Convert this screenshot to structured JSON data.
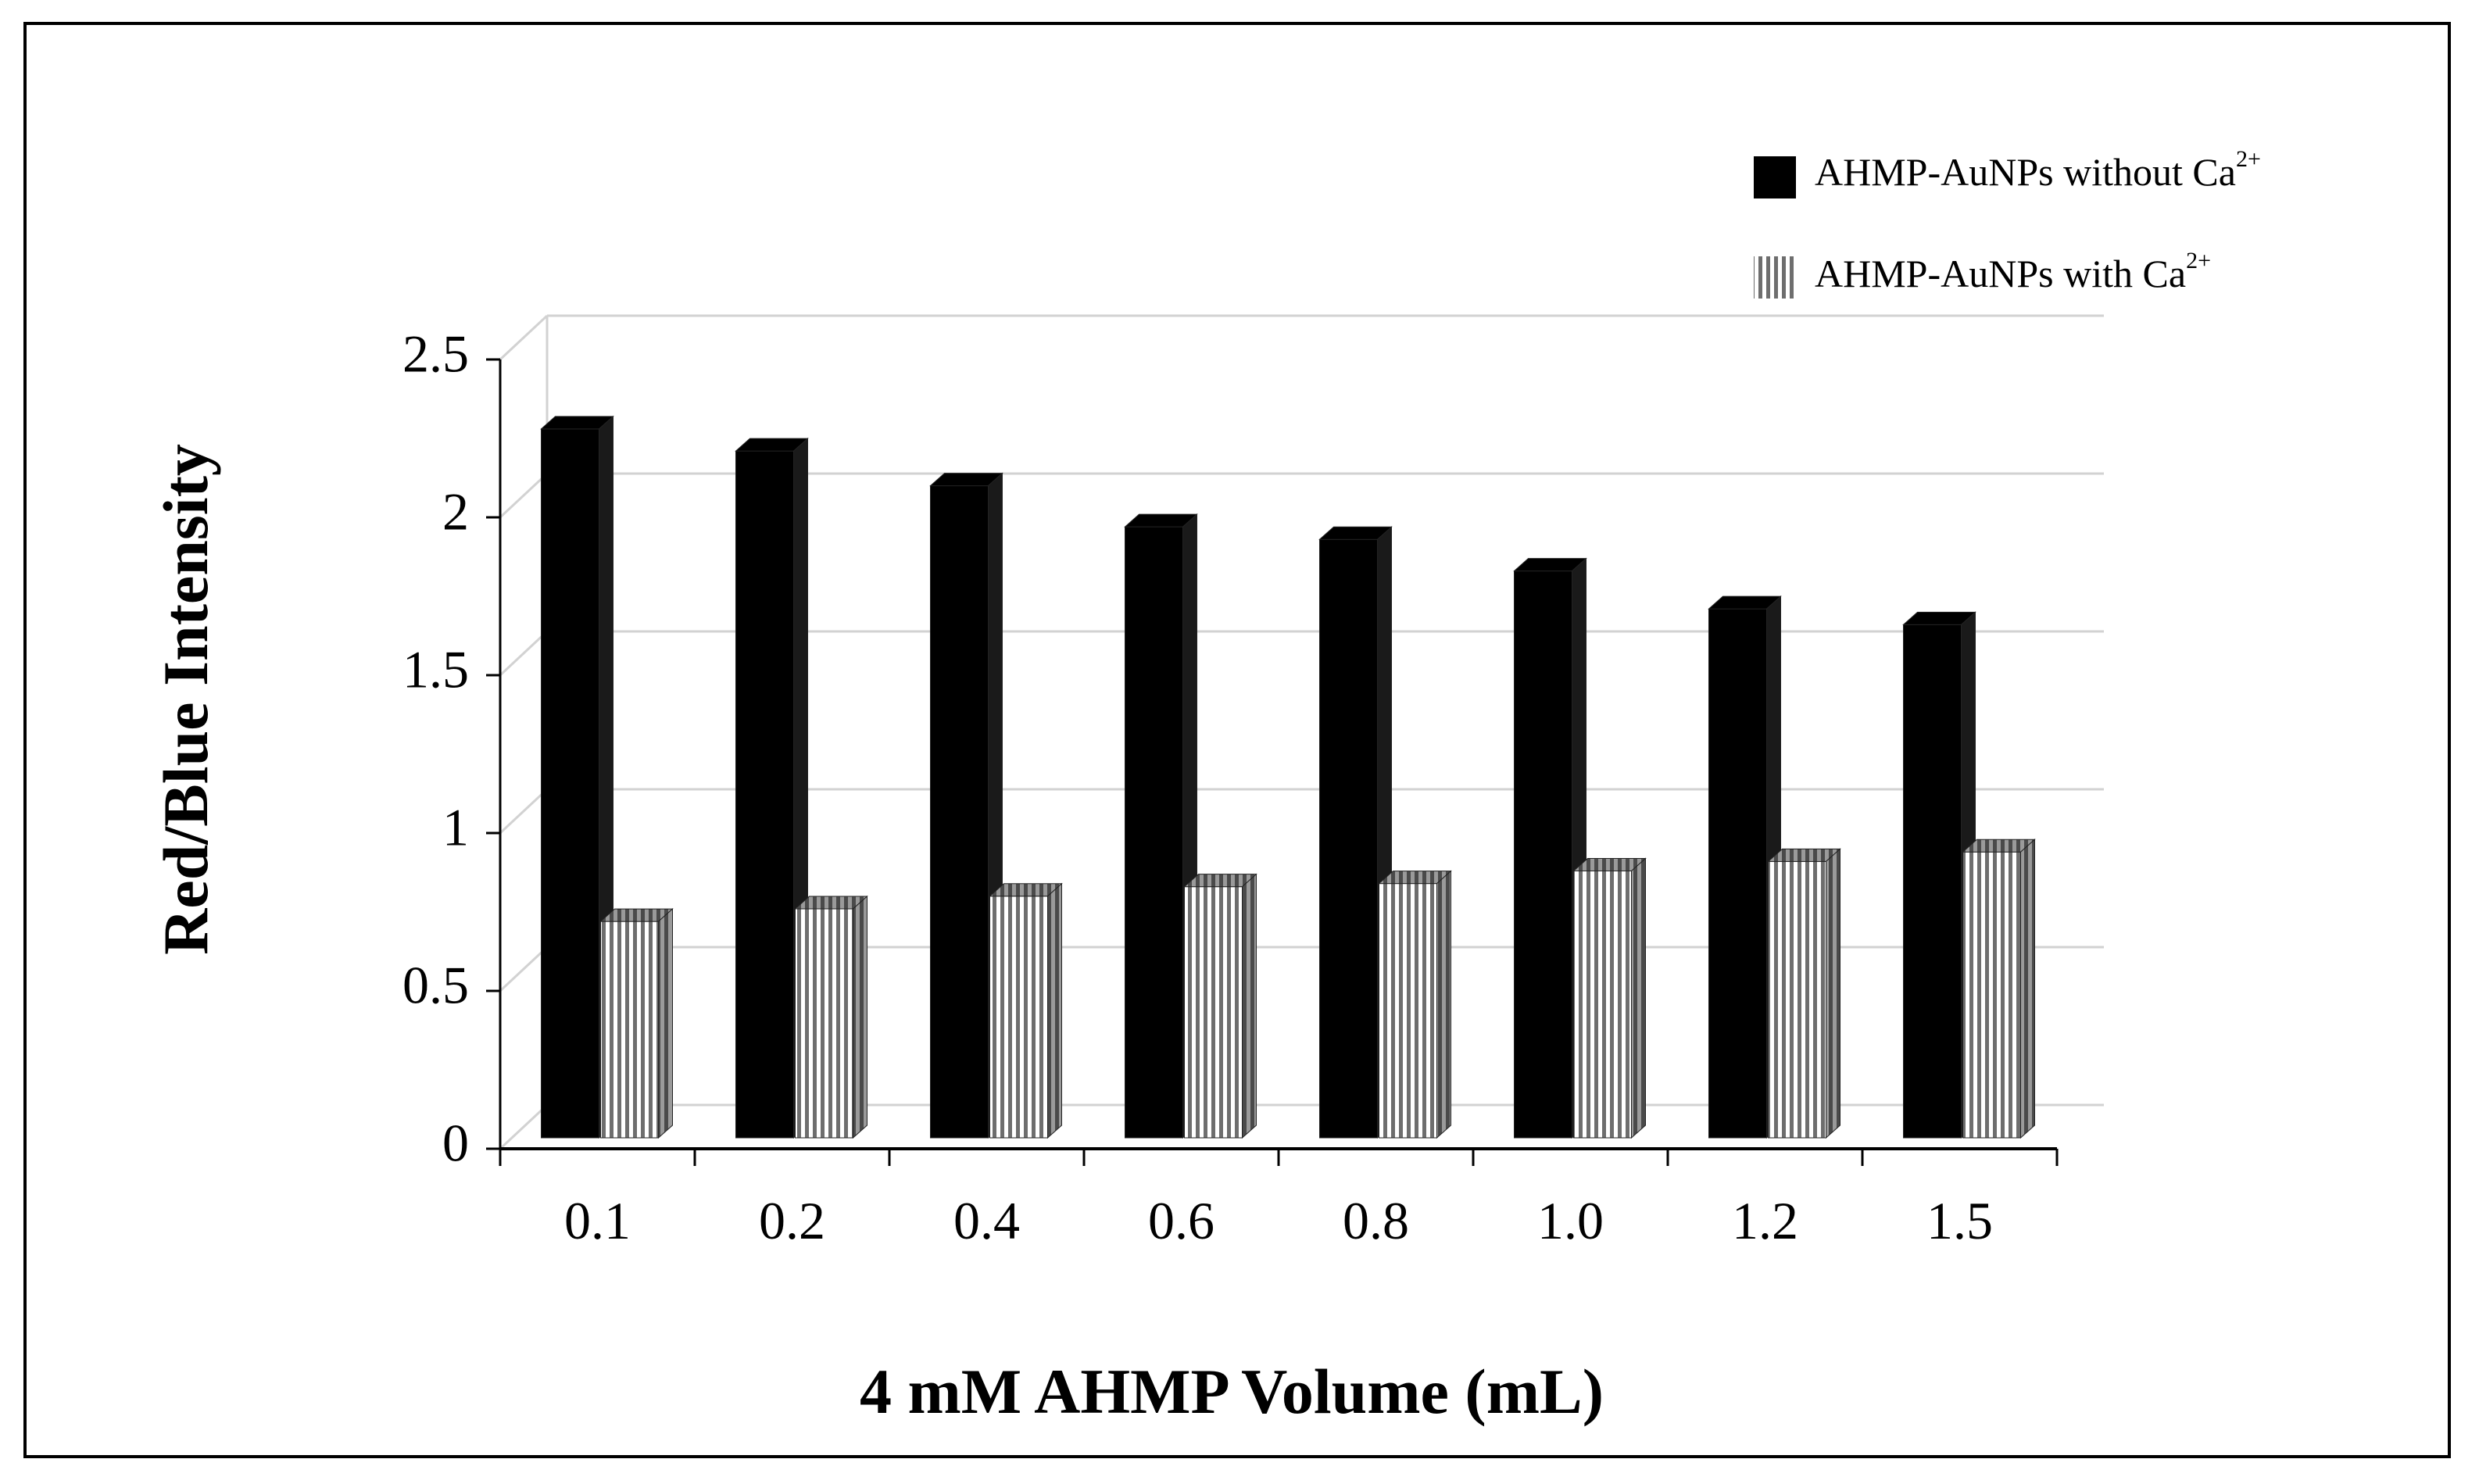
{
  "chart_data": {
    "type": "bar",
    "title": "",
    "xlabel": "4 mM AHMP Volume (mL)",
    "ylabel": "Red/Blue Intensity",
    "categories": [
      "0.1",
      "0.2",
      "0.4",
      "0.6",
      "0.8",
      "1.0",
      "1.2",
      "1.5"
    ],
    "ylim": [
      0,
      2.5
    ],
    "yticks": [
      "0",
      "0.5",
      "1",
      "1.5",
      "2",
      "2.5"
    ],
    "grid": true,
    "legend_position": "top-right",
    "series": [
      {
        "name": "AHMP-AuNPs without Ca",
        "superscript": "2+",
        "fill": "solid",
        "color": "#000000",
        "values": [
          2.28,
          2.21,
          2.1,
          1.97,
          1.93,
          1.83,
          1.71,
          1.66
        ]
      },
      {
        "name": "AHMP-AuNPs with Ca",
        "superscript": "2+",
        "fill": "vertical-stripes",
        "color": "#8a8a8a",
        "values": [
          0.72,
          0.76,
          0.8,
          0.83,
          0.84,
          0.88,
          0.91,
          0.94
        ]
      }
    ]
  }
}
